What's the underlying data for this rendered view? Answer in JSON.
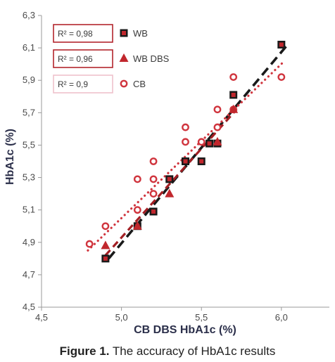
{
  "chart_data": {
    "type": "scatter",
    "xlabel": "CB DBS HbA1c (%)",
    "ylabel": "HbA1c (%)",
    "xlim": [
      4.5,
      6.3
    ],
    "ylim": [
      4.5,
      6.3
    ],
    "xticks": [
      "4,5",
      "5,0",
      "5,5",
      "6,0"
    ],
    "xtick_values": [
      4.5,
      5.0,
      5.5,
      6.0
    ],
    "yticks": [
      "4,5",
      "4,7",
      "4,9",
      "5,1",
      "5,3",
      "5,5",
      "5,7",
      "5,9",
      "6,1",
      "6,3"
    ],
    "ytick_values": [
      4.5,
      4.7,
      4.9,
      5.1,
      5.3,
      5.5,
      5.7,
      5.9,
      6.1,
      6.3
    ],
    "legend_position": "top-left",
    "series": [
      {
        "name": "WB",
        "r2": "R² = 0,98",
        "marker": "square",
        "color": "#1a1a1a",
        "fill": "#1a1a1a",
        "inner": "#c1272d",
        "line_color": "#1a1a1a",
        "line_style": "dashed",
        "x": [
          4.9,
          5.1,
          5.2,
          5.3,
          5.4,
          5.5,
          5.55,
          5.6,
          5.7,
          6.0
        ],
        "y": [
          4.8,
          5.0,
          5.09,
          5.29,
          5.4,
          5.4,
          5.51,
          5.51,
          5.81,
          6.12
        ],
        "trend": [
          [
            4.92,
            4.8
          ],
          [
            6.03,
            6.11
          ]
        ]
      },
      {
        "name": "WB DBS",
        "r2": "R² = 0,96",
        "marker": "triangle",
        "color": "#c1272d",
        "fill": "#c1272d",
        "line_color": "#a31f24",
        "line_style": "dashed",
        "x": [
          4.9,
          5.1,
          5.3,
          5.6,
          5.7
        ],
        "y": [
          4.88,
          5.0,
          5.2,
          5.52,
          5.72
        ],
        "trend": [
          [
            4.9,
            4.82
          ],
          [
            5.72,
            5.72
          ]
        ]
      },
      {
        "name": "CB",
        "r2": "R² = 0,9",
        "marker": "circle",
        "color": "#d0353e",
        "fill": "#ffffff",
        "line_color": "#d0353e",
        "line_style": "dotted",
        "x": [
          4.8,
          4.9,
          5.1,
          5.1,
          5.2,
          5.2,
          5.2,
          5.3,
          5.4,
          5.4,
          5.4,
          5.5,
          5.6,
          5.6,
          5.7,
          5.7,
          6.0
        ],
        "y": [
          4.89,
          5.0,
          5.1,
          5.29,
          5.2,
          5.29,
          5.4,
          5.29,
          5.4,
          5.52,
          5.61,
          5.52,
          5.61,
          5.72,
          5.72,
          5.92,
          5.92
        ],
        "trend": [
          [
            4.79,
            4.85
          ],
          [
            6.02,
            6.02
          ]
        ]
      }
    ]
  },
  "caption": {
    "label": "Figure 1.",
    "text": " The accuracy of HbA1c results"
  }
}
